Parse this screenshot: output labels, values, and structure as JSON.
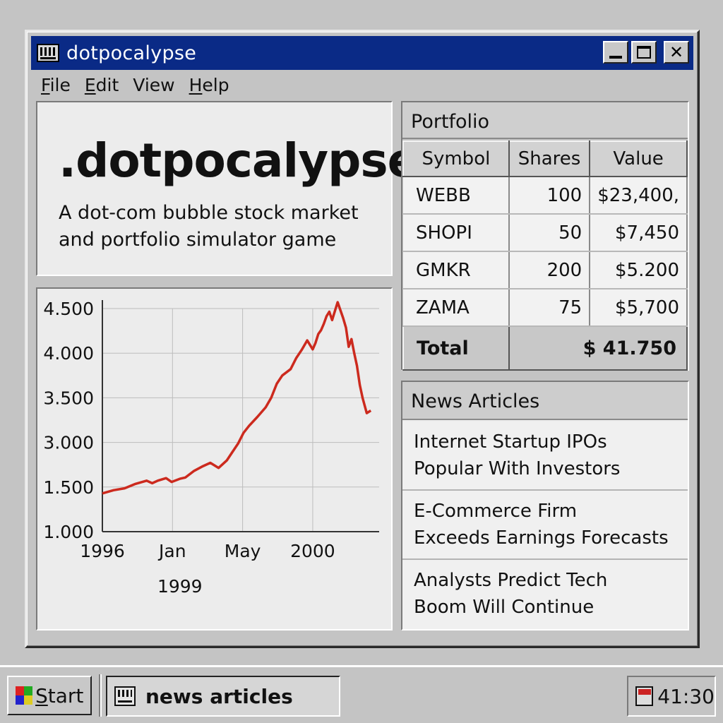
{
  "window": {
    "title": "dotpocalypse",
    "controls": [
      "minimize",
      "maximize",
      "close"
    ]
  },
  "menu": [
    {
      "underline": "F",
      "rest": "ile"
    },
    {
      "underline": "E",
      "rest": "dit"
    },
    {
      "underline": "",
      "rest": "View"
    },
    {
      "underline": "H",
      "rest": "elp"
    }
  ],
  "hero": {
    "title": ".dotpocalypse",
    "subtitle": "A dot-com bubble stock market and portfolio simulator game"
  },
  "chart_data": {
    "type": "line",
    "series_color": "#cc2a1e",
    "y_tick_labels": [
      "4.500",
      "4.000",
      "3.500",
      "3.000",
      "1.500",
      "1.000"
    ],
    "x_tick_labels": [
      "1996",
      "Jan",
      "May",
      "2000"
    ],
    "x_sub_label": "1999",
    "grid": true,
    "x": [
      0.0,
      0.04,
      0.08,
      0.12,
      0.16,
      0.18,
      0.2,
      0.23,
      0.25,
      0.28,
      0.3,
      0.33,
      0.36,
      0.39,
      0.42,
      0.45,
      0.47,
      0.49,
      0.51,
      0.53,
      0.56,
      0.59,
      0.61,
      0.63,
      0.65,
      0.68,
      0.7,
      0.72,
      0.74,
      0.76,
      0.77,
      0.78,
      0.79,
      0.8,
      0.81,
      0.82,
      0.83,
      0.85,
      0.87,
      0.88,
      0.89,
      0.9,
      0.91,
      0.92,
      0.93,
      0.94,
      0.955,
      0.97
    ],
    "values": [
      1.6,
      1.65,
      1.68,
      1.75,
      1.8,
      1.76,
      1.8,
      1.84,
      1.78,
      1.83,
      1.85,
      1.95,
      2.02,
      2.08,
      2.0,
      2.12,
      2.25,
      2.38,
      2.55,
      2.66,
      2.8,
      2.95,
      3.1,
      3.32,
      3.45,
      3.55,
      3.72,
      3.85,
      4.0,
      3.86,
      3.96,
      4.1,
      4.16,
      4.26,
      4.38,
      4.45,
      4.32,
      4.6,
      4.35,
      4.2,
      3.9,
      4.02,
      3.8,
      3.6,
      3.3,
      3.1,
      2.86,
      2.9
    ]
  },
  "portfolio": {
    "header": "Portfolio",
    "columns": [
      "Symbol",
      "Shares",
      "Value"
    ],
    "rows": [
      {
        "symbol": "WEBB",
        "shares": "100",
        "value": "$23,400,"
      },
      {
        "symbol": "SHOPI",
        "shares": "50",
        "value": "$7,450"
      },
      {
        "symbol": "GMKR",
        "shares": "200",
        "value": "$5.200"
      },
      {
        "symbol": "ZAMA",
        "shares": "75",
        "value": "$5,700"
      }
    ],
    "total_label": "Total",
    "total_value": "$ 41.750"
  },
  "news": {
    "header": "News Articles",
    "items": [
      {
        "line1": "Internet Startup IPOs",
        "line2": "Popular With Investors"
      },
      {
        "line1": "E-Commerce Firm",
        "line2": "Exceeds Earnings Forecasts"
      },
      {
        "line1": "Analysts Predict Tech",
        "line2": "Boom Will Continue"
      }
    ]
  },
  "taskbar": {
    "start_label_underline": "S",
    "start_label_rest": "tart",
    "task_label": "news articles",
    "clock": "41:30"
  }
}
